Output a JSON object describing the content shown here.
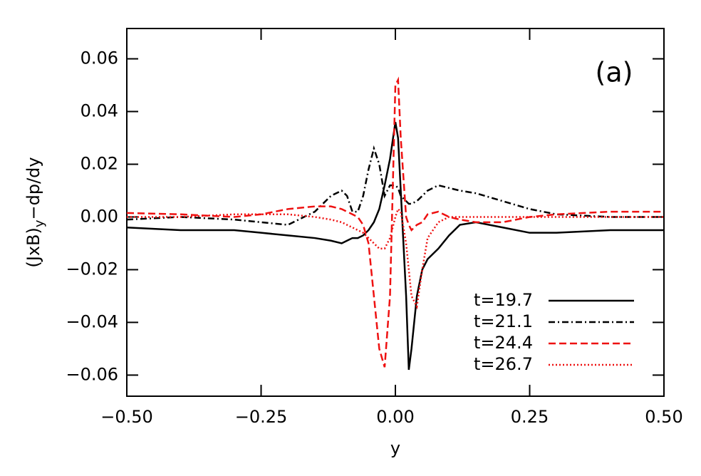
{
  "chart_data": {
    "type": "line",
    "xlabel": "y",
    "ylabel_parts": [
      "(JxB)",
      "y",
      "−dp/dy"
    ],
    "annotation": "(a)",
    "x": [
      -0.5,
      -0.4,
      -0.3,
      -0.25,
      -0.2,
      -0.15,
      -0.12,
      -0.1,
      -0.09,
      -0.08,
      -0.07,
      -0.06,
      -0.05,
      -0.04,
      -0.03,
      -0.02,
      -0.01,
      0,
      0.005,
      0.01,
      0.02,
      0.025,
      0.03,
      0.04,
      0.05,
      0.06,
      0.08,
      0.1,
      0.12,
      0.15,
      0.2,
      0.25,
      0.3,
      0.4,
      0.5
    ],
    "series": [
      {
        "name": "t=19.7",
        "color": "#000000",
        "linestyle": "solid",
        "values": [
          -0.004,
          -0.005,
          -0.005,
          -0.006,
          -0.007,
          -0.008,
          -0.009,
          -0.01,
          -0.009,
          -0.008,
          -0.008,
          -0.007,
          -0.005,
          -0.002,
          0.003,
          0.012,
          0.022,
          0.036,
          0.03,
          0.01,
          -0.03,
          -0.058,
          -0.05,
          -0.03,
          -0.02,
          -0.016,
          -0.012,
          -0.007,
          -0.003,
          -0.002,
          -0.004,
          -0.006,
          -0.006,
          -0.005,
          -0.005
        ]
      },
      {
        "name": "t=21.1",
        "color": "#000000",
        "linestyle": "dashdot",
        "values": [
          -0.001,
          0.0,
          -0.001,
          -0.002,
          -0.003,
          0.002,
          0.008,
          0.01,
          0.008,
          0.002,
          0.002,
          0.008,
          0.018,
          0.026,
          0.02,
          0.008,
          0.012,
          0.012,
          0.011,
          0.008,
          0.006,
          0.005,
          0.005,
          0.006,
          0.008,
          0.01,
          0.012,
          0.011,
          0.01,
          0.009,
          0.006,
          0.003,
          0.001,
          0.0,
          0.0
        ]
      },
      {
        "name": "t=24.4",
        "color": "#ee1111",
        "linestyle": "dashed",
        "values": [
          0.0015,
          0.001,
          0.0,
          0.001,
          0.003,
          0.004,
          0.004,
          0.003,
          0.002,
          0.001,
          0.0,
          -0.003,
          -0.01,
          -0.03,
          -0.05,
          -0.057,
          -0.03,
          0.05,
          0.052,
          0.03,
          0.0,
          -0.003,
          -0.005,
          -0.003,
          -0.002,
          0.001,
          0.002,
          0.0,
          -0.001,
          -0.002,
          -0.002,
          0.0,
          0.001,
          0.002,
          0.002
        ]
      },
      {
        "name": "t=26.7",
        "color": "#ee1111",
        "linestyle": "dotted",
        "values": [
          0.0,
          0.0,
          0.001,
          0.001,
          0.001,
          0.0,
          -0.001,
          -0.002,
          -0.003,
          -0.004,
          -0.005,
          -0.006,
          -0.008,
          -0.01,
          -0.012,
          -0.012,
          -0.008,
          0.0,
          0.003,
          0.002,
          -0.01,
          -0.02,
          -0.03,
          -0.034,
          -0.02,
          -0.008,
          -0.002,
          0.0,
          0.0,
          0.0,
          0.0,
          0.0,
          0.0,
          0.0,
          0.0
        ]
      }
    ],
    "xlim": [
      -0.5,
      0.5
    ],
    "ylim": [
      -0.068,
      0.0715
    ],
    "xticks": [
      {
        "value": -0.5,
        "label": "−0.50"
      },
      {
        "value": -0.25,
        "label": "−0.25"
      },
      {
        "value": 0,
        "label": "0.00"
      },
      {
        "value": 0.25,
        "label": "0.25"
      },
      {
        "value": 0.5,
        "label": "0.50"
      }
    ],
    "yticks": [
      {
        "value": -0.06,
        "label": "−0.06"
      },
      {
        "value": -0.04,
        "label": "−0.04"
      },
      {
        "value": -0.02,
        "label": "−0.02"
      },
      {
        "value": 0,
        "label": "0.00"
      },
      {
        "value": 0.02,
        "label": "0.02"
      },
      {
        "value": 0.04,
        "label": "0.04"
      },
      {
        "value": 0.06,
        "label": "0.06"
      }
    ],
    "legend": "lower-right"
  }
}
